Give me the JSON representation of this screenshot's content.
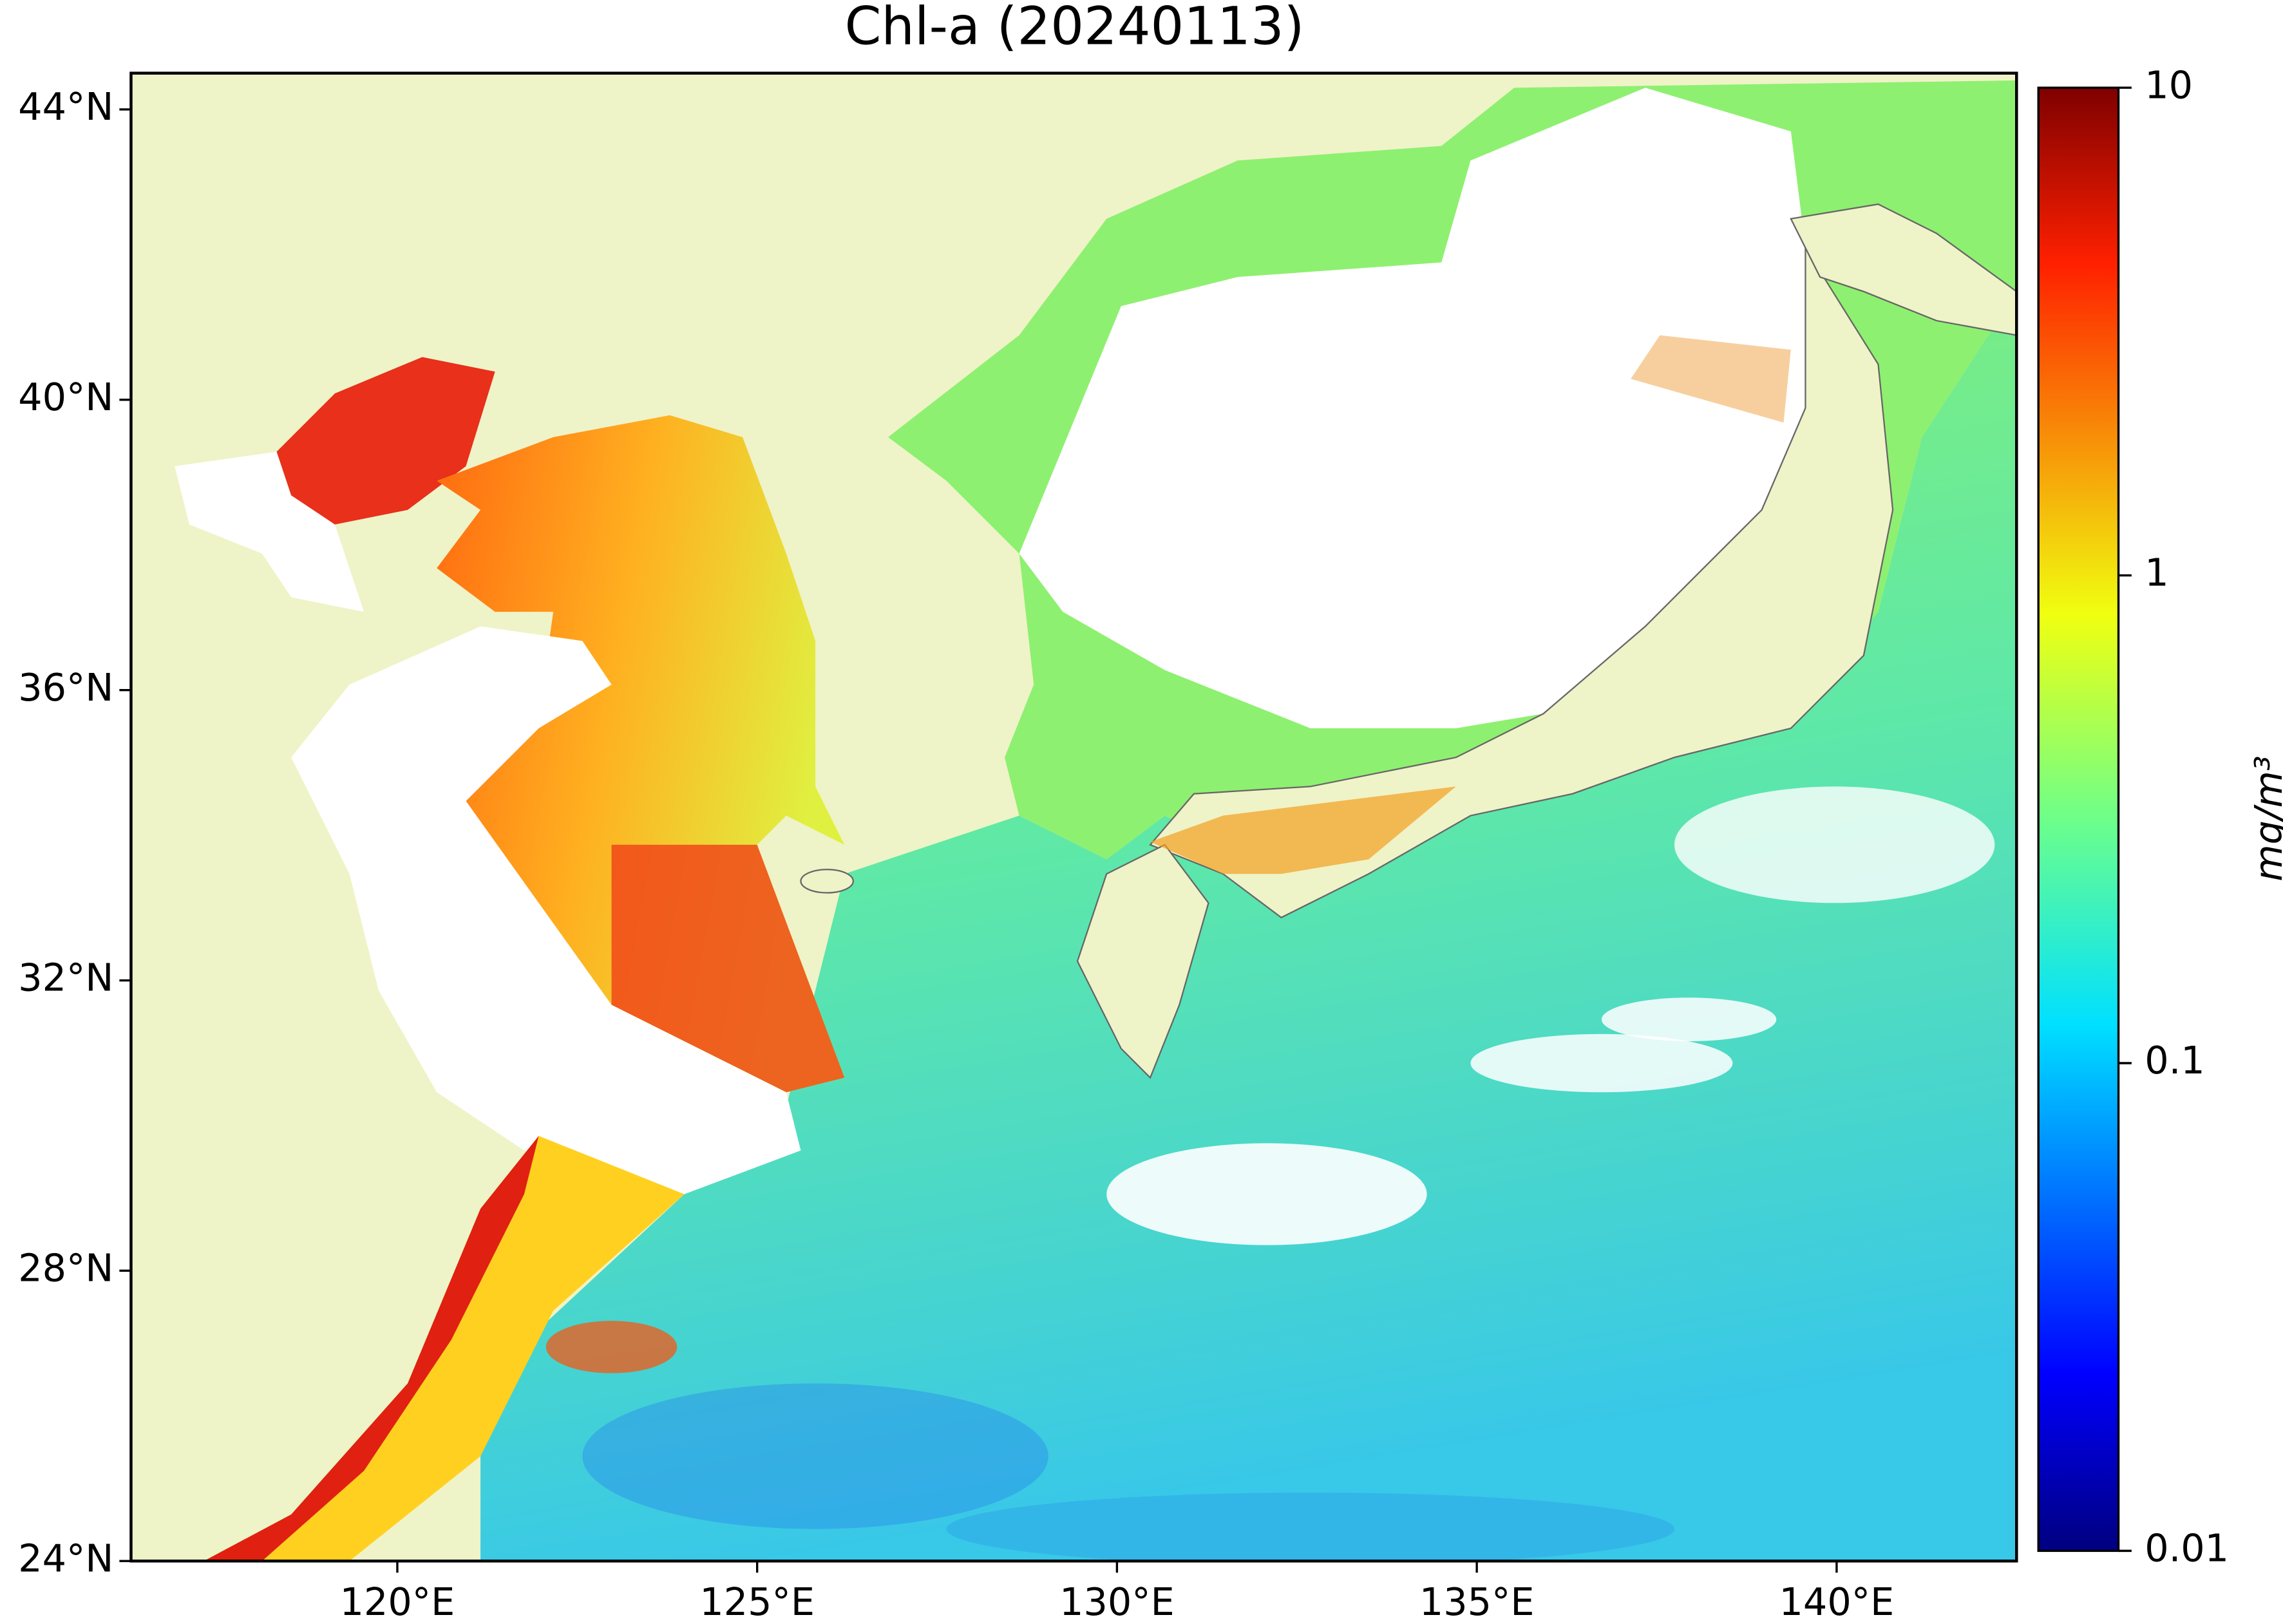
{
  "chart_data": {
    "type": "map",
    "title": "Chl-a (20240113)",
    "xlim": [
      116.3,
      142.5
    ],
    "ylim": [
      24,
      44.5
    ],
    "xticks": [
      {
        "value": 120,
        "label": "120°E"
      },
      {
        "value": 125,
        "label": "125°E"
      },
      {
        "value": 130,
        "label": "130°E"
      },
      {
        "value": 135,
        "label": "135°E"
      },
      {
        "value": 140,
        "label": "140°E"
      }
    ],
    "yticks": [
      {
        "value": 24,
        "label": "24°N"
      },
      {
        "value": 28,
        "label": "28°N"
      },
      {
        "value": 32,
        "label": "32°N"
      },
      {
        "value": 36,
        "label": "36°N"
      },
      {
        "value": 40,
        "label": "40°N"
      },
      {
        "value": 44,
        "label": "44°N"
      }
    ],
    "colorbar": {
      "label": "mg/m³",
      "lim": [
        0.01,
        10
      ],
      "ticks": [
        0.01,
        0.1,
        1,
        10
      ],
      "log_scale": true
    }
  }
}
